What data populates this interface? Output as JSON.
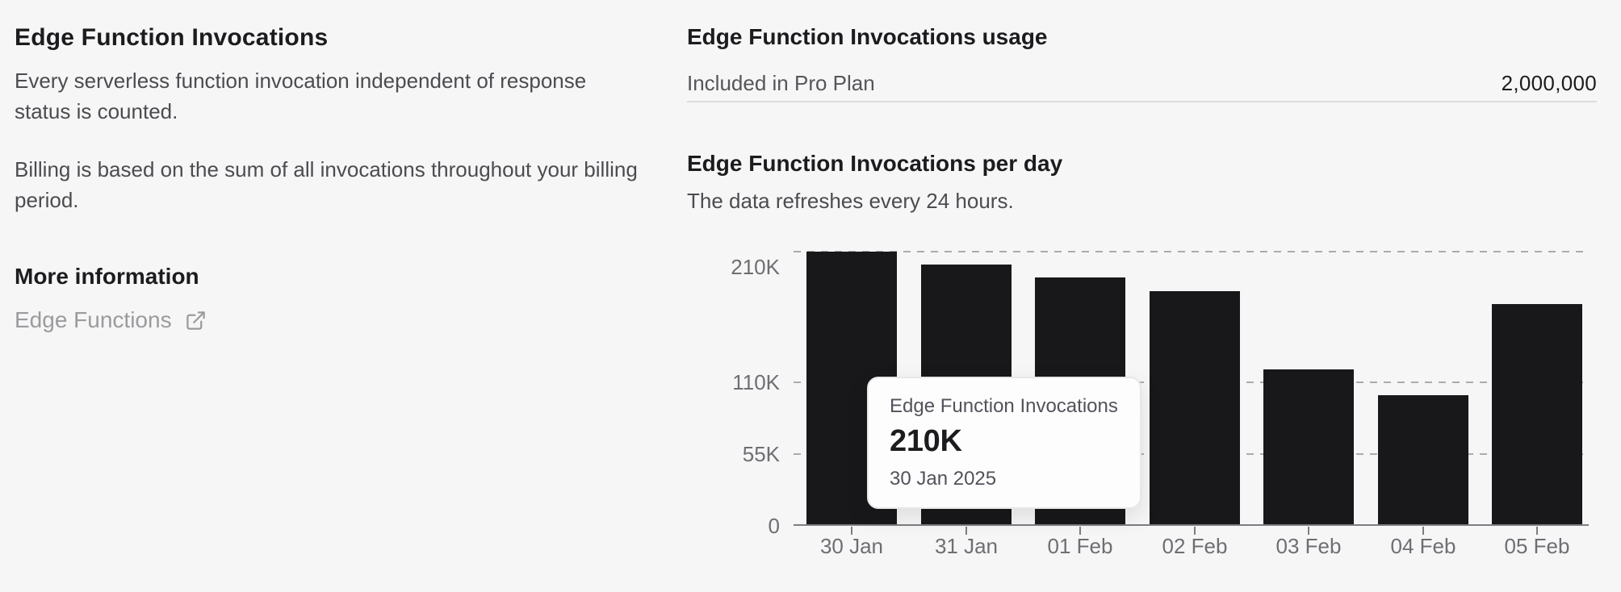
{
  "left_panel": {
    "title": "Edge Function Invocations",
    "paragraph_1": "Every serverless function invocation independent of response status is counted.",
    "paragraph_2": "Billing is based on the sum of all invocations throughout your billing period.",
    "more_info_heading": "More information",
    "doc_link_label": "Edge Functions"
  },
  "usage_panel": {
    "heading": "Edge Function Invocations usage",
    "included_label": "Included in Pro Plan",
    "included_value": "2,000,000"
  },
  "chart_panel": {
    "heading": "Edge Function Invocations per day",
    "subheading": "The data refreshes every 24 hours."
  },
  "tooltip": {
    "title": "Edge Function Invocations",
    "value": "210K",
    "date": "30 Jan 2025"
  },
  "chart_data": {
    "type": "bar",
    "title": "Edge Function Invocations per day",
    "categories": [
      "30 Jan",
      "31 Jan",
      "01 Feb",
      "02 Feb",
      "03 Feb",
      "04 Feb",
      "05 Feb"
    ],
    "values": [
      210000,
      200000,
      190000,
      180000,
      120000,
      100000,
      170000
    ],
    "values_display": [
      "210K",
      "200K",
      "190K",
      "180K",
      "120K",
      "100K",
      "170K"
    ],
    "xlabel": "",
    "ylabel": "",
    "ylim": [
      0,
      215000
    ],
    "y_ticks": [
      {
        "label": "210K",
        "value": 210000
      },
      {
        "label": "110K",
        "value": 110000
      },
      {
        "label": "55K",
        "value": 55000
      },
      {
        "label": "0",
        "value": 0
      }
    ],
    "grid": "horizontal-dashed",
    "legend_position": "none",
    "bar_color": "#18181b",
    "hovered_category": "30 Jan",
    "hovered_value_display": "210K"
  },
  "colors": {
    "page_background": "#f6f6f7",
    "heading_text": "#1c1c1f",
    "body_text": "#4c4c50",
    "muted_text": "#9b9b9e",
    "axis_text": "#6e6e73",
    "bar": "#18181b",
    "gridline": "#ababab",
    "axis_line": "#7d7d82",
    "divider": "#dcdcdd",
    "tooltip_background": "#fdfdfd",
    "tooltip_border": "#e7e7e8"
  }
}
